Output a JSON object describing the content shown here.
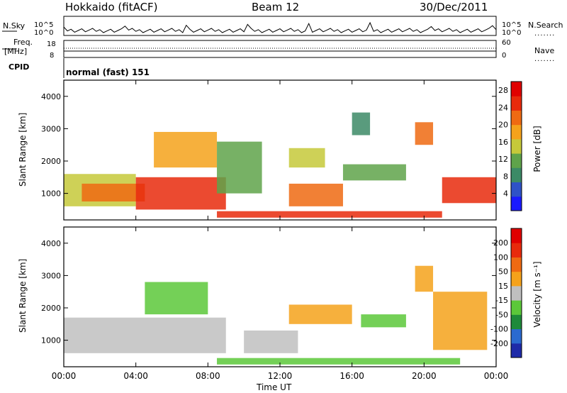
{
  "header": {
    "station": "Hokkaido (fitACF)",
    "beam": "Beam 12",
    "date": "30/Dec/2011"
  },
  "strip_panels": {
    "nsky_label": "N.Sky",
    "nsearch_label": "N.Search",
    "freq_label": "Freq.",
    "freq_unit": "[MHz]",
    "nave_label": "Nave",
    "cpid_label": "CPID",
    "cpid_value": "normal (fast) 151",
    "noise_ticks_left": [
      "10^5",
      "10^0"
    ],
    "noise_ticks_right": [
      "10^5",
      "10^0"
    ],
    "freq_ticks_left": [
      "18",
      "8"
    ],
    "nave_ticks_right": [
      "60",
      "0"
    ],
    "line_key": "......."
  },
  "chart_data": [
    {
      "type": "heatmap",
      "title": "",
      "quantity": "Power",
      "ylabel": "Slant Range [km]",
      "xlabel": "Time UT",
      "ylim": [
        180,
        4500
      ],
      "yticks": [
        1000,
        2000,
        3000,
        4000
      ],
      "xticks": [
        "00:00",
        "04:00",
        "08:00",
        "12:00",
        "16:00",
        "20:00",
        "00:00"
      ],
      "colorbar": {
        "label": "Power [dB]",
        "ticks": [
          4,
          8,
          12,
          16,
          20,
          24,
          28
        ],
        "range": [
          0,
          30
        ],
        "colors": [
          "#1a1aff",
          "#2f52c8",
          "#3c8a66",
          "#5fa34a",
          "#c6c93a",
          "#f5a21b",
          "#ef6a12",
          "#e82a0c",
          "#e00000"
        ]
      },
      "regions": [
        {
          "t0": 0.0,
          "t1": 4.0,
          "r0": 600,
          "r1": 1600,
          "value": 14
        },
        {
          "t0": 1.0,
          "t1": 4.5,
          "r0": 750,
          "r1": 1300,
          "value": 22
        },
        {
          "t0": 4.0,
          "t1": 9.0,
          "r0": 500,
          "r1": 1500,
          "value": 26
        },
        {
          "t0": 5.0,
          "t1": 8.5,
          "r0": 1800,
          "r1": 2900,
          "value": 18
        },
        {
          "t0": 8.5,
          "t1": 11.0,
          "r0": 1000,
          "r1": 2600,
          "value": 10
        },
        {
          "t0": 12.5,
          "t1": 14.5,
          "r0": 1800,
          "r1": 2400,
          "value": 14
        },
        {
          "t0": 12.5,
          "t1": 15.5,
          "r0": 600,
          "r1": 1300,
          "value": 20
        },
        {
          "t0": 15.5,
          "t1": 19.0,
          "r0": 1400,
          "r1": 1900,
          "value": 12
        },
        {
          "t0": 16.0,
          "t1": 17.0,
          "r0": 2800,
          "r1": 3500,
          "value": 8
        },
        {
          "t0": 19.5,
          "t1": 20.5,
          "r0": 2500,
          "r1": 3200,
          "value": 20
        },
        {
          "t0": 21.0,
          "t1": 24.0,
          "r0": 700,
          "r1": 1500,
          "value": 26
        },
        {
          "t0": 8.5,
          "t1": 21.0,
          "r0": 250,
          "r1": 450,
          "value": 24
        }
      ]
    },
    {
      "type": "heatmap",
      "title": "",
      "quantity": "Velocity",
      "ylabel": "Slant Range [km]",
      "xlabel": "Time UT",
      "ylim": [
        180,
        4500
      ],
      "yticks": [
        1000,
        2000,
        3000,
        4000
      ],
      "xticks": [
        "00:00",
        "04:00",
        "08:00",
        "12:00",
        "16:00",
        "20:00",
        "00:00"
      ],
      "colorbar": {
        "label": "Velocity [m s⁻¹]",
        "ticks": [
          200,
          100,
          50,
          15,
          -15,
          -50,
          -100,
          -200
        ],
        "range": [
          -250,
          250
        ],
        "colors": [
          "#1e2aa8",
          "#2b6ad0",
          "#1e8a3a",
          "#5cc83a",
          "#bfbfbf",
          "#f5a21b",
          "#ef6a12",
          "#e82a0c",
          "#e00000"
        ]
      },
      "regions": [
        {
          "t0": 0.0,
          "t1": 9.0,
          "r0": 600,
          "r1": 1700,
          "value": 0
        },
        {
          "t0": 4.5,
          "t1": 8.0,
          "r0": 1800,
          "r1": 2800,
          "value": -40
        },
        {
          "t0": 12.5,
          "t1": 16.0,
          "r0": 1500,
          "r1": 2100,
          "value": 40
        },
        {
          "t0": 16.5,
          "t1": 19.0,
          "r0": 1400,
          "r1": 1800,
          "value": -60
        },
        {
          "t0": 19.5,
          "t1": 20.5,
          "r0": 2500,
          "r1": 3300,
          "value": 40
        },
        {
          "t0": 20.5,
          "t1": 23.5,
          "r0": 700,
          "r1": 2500,
          "value": 60
        },
        {
          "t0": 8.5,
          "t1": 22.0,
          "r0": 250,
          "r1": 450,
          "value": -50
        },
        {
          "t0": 10.0,
          "t1": 13.0,
          "r0": 600,
          "r1": 1300,
          "value": 0
        }
      ]
    }
  ]
}
